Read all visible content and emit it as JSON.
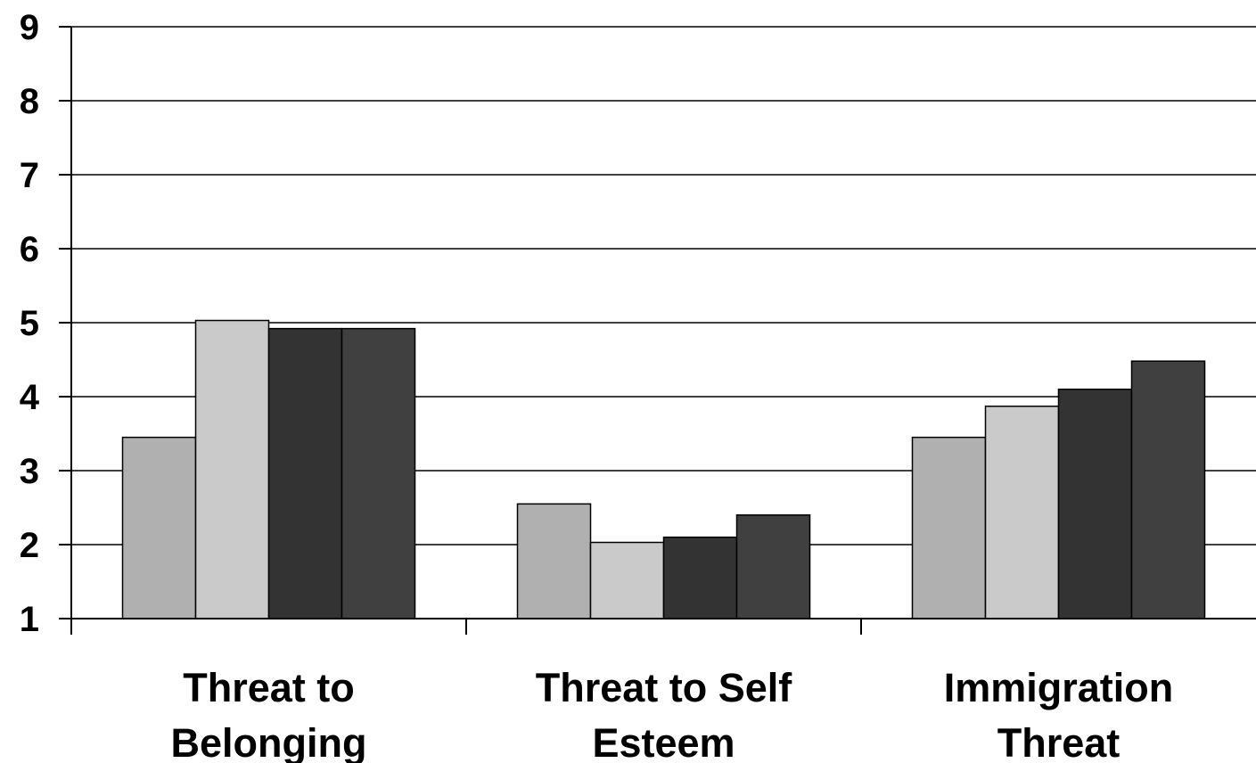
{
  "chart_data": {
    "type": "bar",
    "categories": [
      [
        "Threat to",
        "Belonging"
      ],
      [
        "Threat to Self",
        "Esteem"
      ],
      [
        "Immigration",
        "Threat"
      ]
    ],
    "series": [
      {
        "values": [
          3.45,
          2.55,
          3.45
        ],
        "color": "#b0b0b0"
      },
      {
        "values": [
          5.03,
          2.03,
          3.87
        ],
        "color": "#cacaca"
      },
      {
        "values": [
          4.92,
          2.1,
          4.1
        ],
        "color": "#333333"
      },
      {
        "values": [
          4.92,
          2.4,
          4.48
        ],
        "color": "#404040"
      }
    ],
    "ylim": [
      1,
      9
    ],
    "yticks": [
      1,
      2,
      3,
      4,
      5,
      6,
      7,
      8,
      9
    ],
    "grid": true,
    "legend": "none"
  }
}
